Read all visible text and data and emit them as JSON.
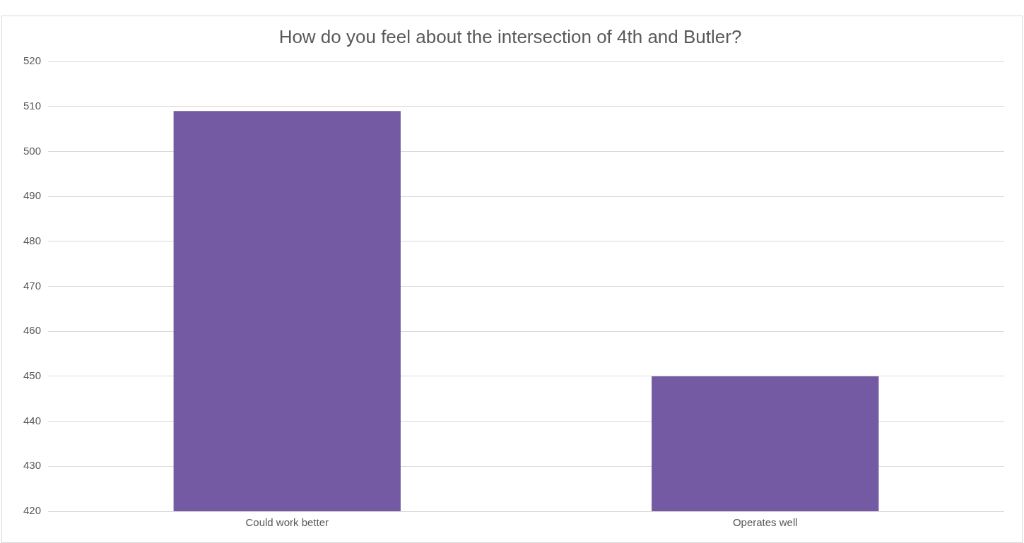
{
  "chart_data": {
    "type": "bar",
    "title": "How do you feel about the intersection of 4th and Butler?",
    "categories": [
      "Could work better",
      "Operates well"
    ],
    "values": [
      509,
      450
    ],
    "color": "#7459a3",
    "ylim": [
      420,
      520
    ],
    "yticks": [
      420,
      430,
      440,
      450,
      460,
      470,
      480,
      490,
      500,
      510,
      520
    ],
    "grid": "y"
  }
}
